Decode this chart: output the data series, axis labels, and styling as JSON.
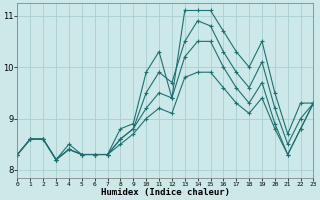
{
  "xlabel": "Humidex (Indice chaleur)",
  "bg_color": "#cce8e8",
  "grid_color": "#aacfcf",
  "line_color": "#1e7070",
  "xlim": [
    0,
    23
  ],
  "ylim": [
    7.85,
    11.25
  ],
  "xticks": [
    0,
    1,
    2,
    3,
    4,
    5,
    6,
    7,
    8,
    9,
    10,
    11,
    12,
    13,
    14,
    15,
    16,
    17,
    18,
    19,
    20,
    21,
    22,
    23
  ],
  "yticks": [
    8,
    9,
    10,
    11
  ],
  "series": [
    [
      8.3,
      8.6,
      8.6,
      8.2,
      8.5,
      8.3,
      8.3,
      8.3,
      8.8,
      8.9,
      9.9,
      10.3,
      9.4,
      11.1,
      11.1,
      11.1,
      10.7,
      10.3,
      10.0,
      10.5,
      9.5,
      8.7,
      9.3,
      9.3
    ],
    [
      8.3,
      8.6,
      8.6,
      8.2,
      8.4,
      8.3,
      8.3,
      8.3,
      8.6,
      8.8,
      9.5,
      9.9,
      9.7,
      10.5,
      10.9,
      10.8,
      10.3,
      9.9,
      9.6,
      10.1,
      9.2,
      8.5,
      9.0,
      9.3
    ],
    [
      8.3,
      8.6,
      8.6,
      8.2,
      8.4,
      8.3,
      8.3,
      8.3,
      8.6,
      8.8,
      9.2,
      9.5,
      9.4,
      10.2,
      10.5,
      10.5,
      10.0,
      9.6,
      9.3,
      9.7,
      8.9,
      8.3,
      8.8,
      9.3
    ],
    [
      8.3,
      8.6,
      8.6,
      8.2,
      8.4,
      8.3,
      8.3,
      8.3,
      8.5,
      8.7,
      9.0,
      9.2,
      9.1,
      9.8,
      9.9,
      9.9,
      9.6,
      9.3,
      9.1,
      9.4,
      8.8,
      8.3,
      8.8,
      9.3
    ]
  ]
}
